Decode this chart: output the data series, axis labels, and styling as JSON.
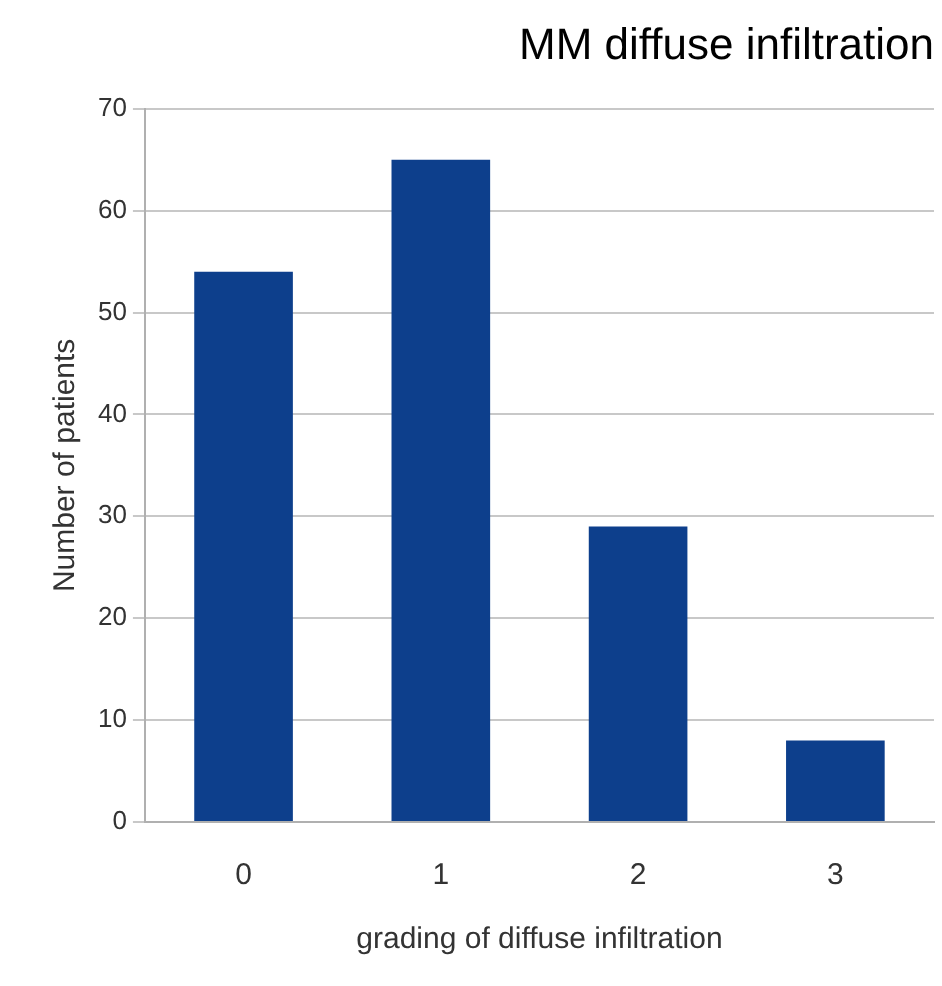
{
  "chart_data": {
    "type": "bar",
    "title": "MM diffuse infiltration",
    "xlabel": "grading of diffuse infiltration",
    "ylabel": "Number of patients",
    "categories": [
      "0",
      "1",
      "2",
      "3"
    ],
    "values": [
      54,
      65,
      29,
      8
    ],
    "color": "#0d3f8c",
    "ylim": [
      0,
      70
    ],
    "yticks": [
      0,
      10,
      20,
      30,
      40,
      50,
      60,
      70
    ],
    "grid": "y",
    "legend": false
  }
}
